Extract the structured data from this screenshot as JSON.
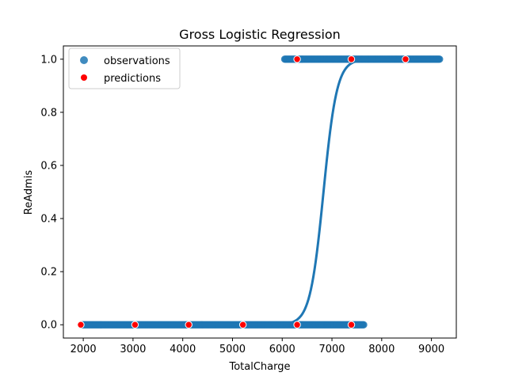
{
  "chart_data": {
    "type": "scatter",
    "title": "Gross Logistic Regression",
    "xlabel": "TotalCharge",
    "ylabel": "ReAdmis",
    "xlim": [
      1600,
      9500
    ],
    "ylim": [
      -0.05,
      1.05
    ],
    "xticks": [
      2000,
      3000,
      4000,
      5000,
      6000,
      7000,
      8000,
      9000
    ],
    "yticks": [
      0.0,
      0.2,
      0.4,
      0.6,
      0.8,
      1.0
    ],
    "xtick_labels": [
      "2000",
      "3000",
      "4000",
      "5000",
      "6000",
      "7000",
      "8000",
      "9000"
    ],
    "ytick_labels": [
      "0.0",
      "0.2",
      "0.4",
      "0.6",
      "0.8",
      "1.0"
    ],
    "grid": false,
    "legend_position": "top-left",
    "colors": {
      "observations": "#1f77b4",
      "predictions": "#ff0000",
      "curve": "#1f77b4"
    },
    "series": [
      {
        "name": "observations",
        "kind": "scatter",
        "segments": [
          {
            "y": 0,
            "x_start": 1950,
            "x_end": 7650
          },
          {
            "y": 1,
            "x_start": 6050,
            "x_end": 9180
          }
        ]
      },
      {
        "name": "predictions",
        "kind": "scatter",
        "points": [
          {
            "x": 1950,
            "y": 0
          },
          {
            "x": 3040,
            "y": 0
          },
          {
            "x": 4120,
            "y": 0
          },
          {
            "x": 5210,
            "y": 0
          },
          {
            "x": 6300,
            "y": 0
          },
          {
            "x": 7390,
            "y": 0
          },
          {
            "x": 6300,
            "y": 1
          },
          {
            "x": 7390,
            "y": 1
          },
          {
            "x": 8480,
            "y": 1
          }
        ]
      },
      {
        "kind": "line",
        "model": "logistic",
        "midpoint_x": 6830,
        "scale": 135,
        "x_range": [
          1950,
          9180
        ]
      }
    ]
  }
}
